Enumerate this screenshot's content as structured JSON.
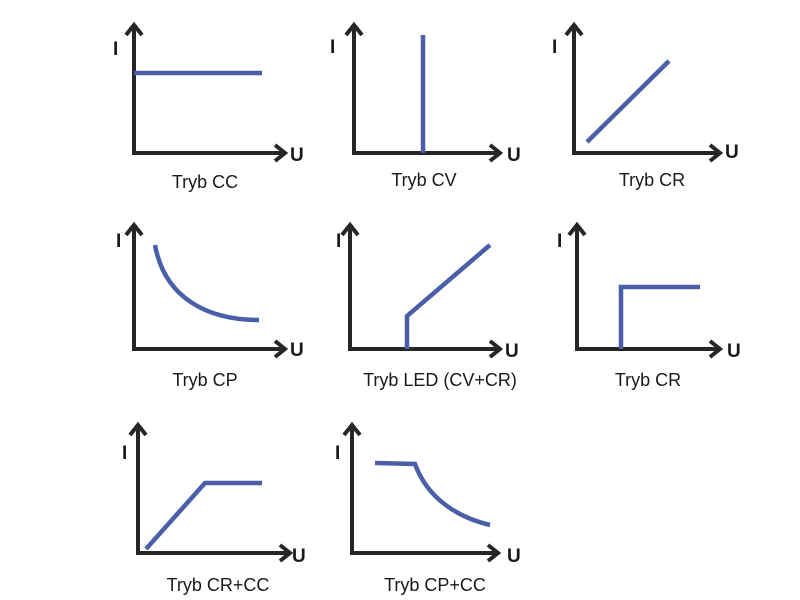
{
  "axis_labels": {
    "y": "I",
    "x": "U"
  },
  "colors": {
    "axis": "#262626",
    "curve": "#4a5fa8"
  },
  "panels": [
    {
      "caption": "Tryb CC"
    },
    {
      "caption": "Tryb CV"
    },
    {
      "caption": "Tryb CR"
    },
    {
      "caption": "Tryb CP"
    },
    {
      "caption": "Tryb LED (CV+CR)"
    },
    {
      "caption": "Tryb CR"
    },
    {
      "caption": "Tryb CR+CC"
    },
    {
      "caption": "Tryb CP+CC"
    }
  ]
}
